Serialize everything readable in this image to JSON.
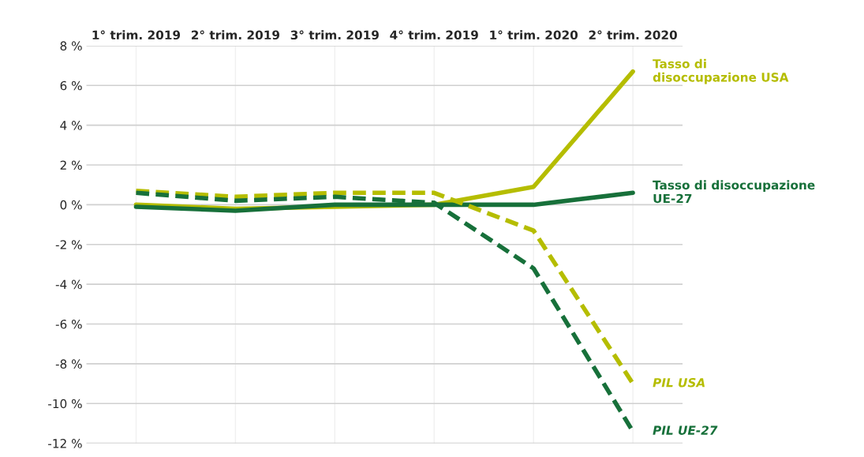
{
  "chart_data": {
    "type": "line",
    "categories": [
      "1° trim. 2019",
      "2° trim. 2019",
      "3° trim. 2019",
      "4° trim. 2019",
      "1° trim. 2020",
      "2° trim. 2020"
    ],
    "series": [
      {
        "name": "Tasso di\ndisoccupazione USA",
        "color": "#b5bd00",
        "line_style": "solid",
        "values": [
          0.0,
          -0.2,
          -0.1,
          0.0,
          0.9,
          6.7
        ]
      },
      {
        "name": "Tasso di disoccupazione\nUE-27",
        "color": "#17703a",
        "line_style": "solid",
        "values": [
          -0.1,
          -0.3,
          0.0,
          0.0,
          0.0,
          0.6
        ]
      },
      {
        "name": "PIL USA",
        "color": "#b5bd00",
        "line_style": "dashed",
        "values": [
          0.7,
          0.4,
          0.6,
          0.6,
          -1.3,
          -9.0
        ]
      },
      {
        "name": "PIL UE-27",
        "color": "#17703a",
        "line_style": "dashed",
        "values": [
          0.6,
          0.2,
          0.4,
          0.1,
          -3.2,
          -11.4
        ]
      }
    ],
    "ylim": [
      -12,
      8
    ],
    "yticks": [
      {
        "value": -12,
        "label": "-12 %"
      },
      {
        "value": -10,
        "label": "-10 %"
      },
      {
        "value": -8,
        "label": "-8 %"
      },
      {
        "value": -6,
        "label": "-6 %"
      },
      {
        "value": -4,
        "label": "-4 %"
      },
      {
        "value": -2,
        "label": "-2 %"
      },
      {
        "value": 0,
        "label": "0 %"
      },
      {
        "value": 2,
        "label": "2 %"
      },
      {
        "value": 4,
        "label": "4 %"
      },
      {
        "value": 6,
        "label": "6 %"
      },
      {
        "value": 8,
        "label": "8 %"
      }
    ],
    "grid": true,
    "legend": false,
    "marker": "none"
  }
}
